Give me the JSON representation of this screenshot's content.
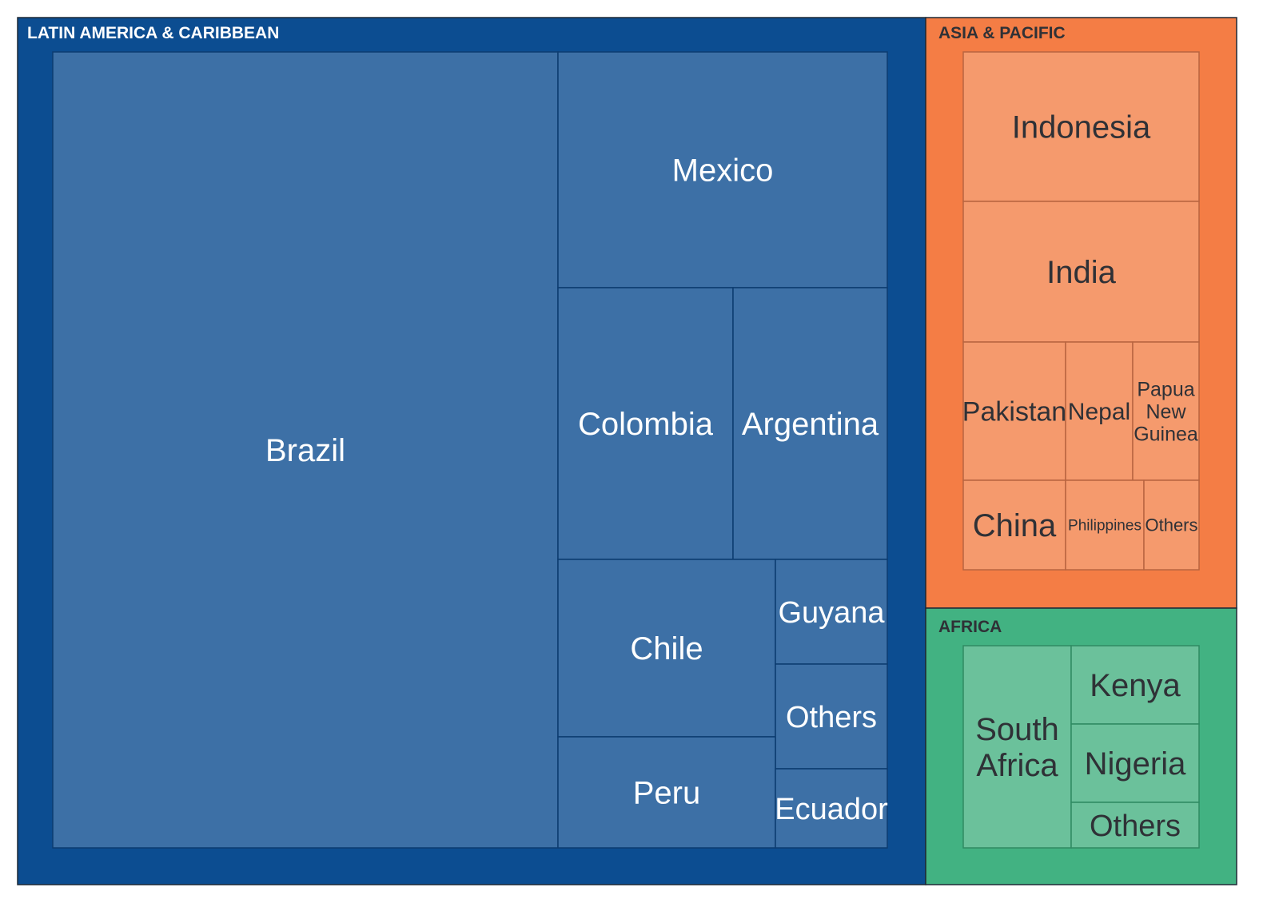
{
  "chart_data": {
    "type": "treemap",
    "colors": {
      "latin_america_caribbean": {
        "region": "#0c4d91",
        "leaf": "#3d70a6",
        "label": "#ffffff",
        "border": "#0c3c70"
      },
      "asia_pacific": {
        "region": "#f47d45",
        "leaf": "#f59a6d",
        "label": "#2f3136",
        "border": "#b86540"
      },
      "africa": {
        "region": "#42b282",
        "leaf": "#6bc19b",
        "label": "#2f3136",
        "border": "#2f8a62"
      }
    },
    "regions": [
      {
        "key": "latin_america_caribbean",
        "name": "LATIN AMERICA & CARIBBEAN",
        "children": [
          {
            "name": "Brazil"
          },
          {
            "name": "Mexico"
          },
          {
            "name": "Colombia"
          },
          {
            "name": "Argentina"
          },
          {
            "name": "Chile"
          },
          {
            "name": "Guyana"
          },
          {
            "name": "Others"
          },
          {
            "name": "Peru"
          },
          {
            "name": "Ecuador"
          }
        ]
      },
      {
        "key": "asia_pacific",
        "name": "ASIA & PACIFIC",
        "children": [
          {
            "name": "Indonesia"
          },
          {
            "name": "India"
          },
          {
            "name": "Pakistan"
          },
          {
            "name": "Nepal"
          },
          {
            "name": "Papua New Guinea"
          },
          {
            "name": "China"
          },
          {
            "name": "Philippines"
          },
          {
            "name": "Others"
          }
        ]
      },
      {
        "key": "africa",
        "name": "AFRICA",
        "children": [
          {
            "name": "South Africa"
          },
          {
            "name": "Kenya"
          },
          {
            "name": "Nigeria"
          },
          {
            "name": "Others"
          }
        ]
      }
    ]
  }
}
